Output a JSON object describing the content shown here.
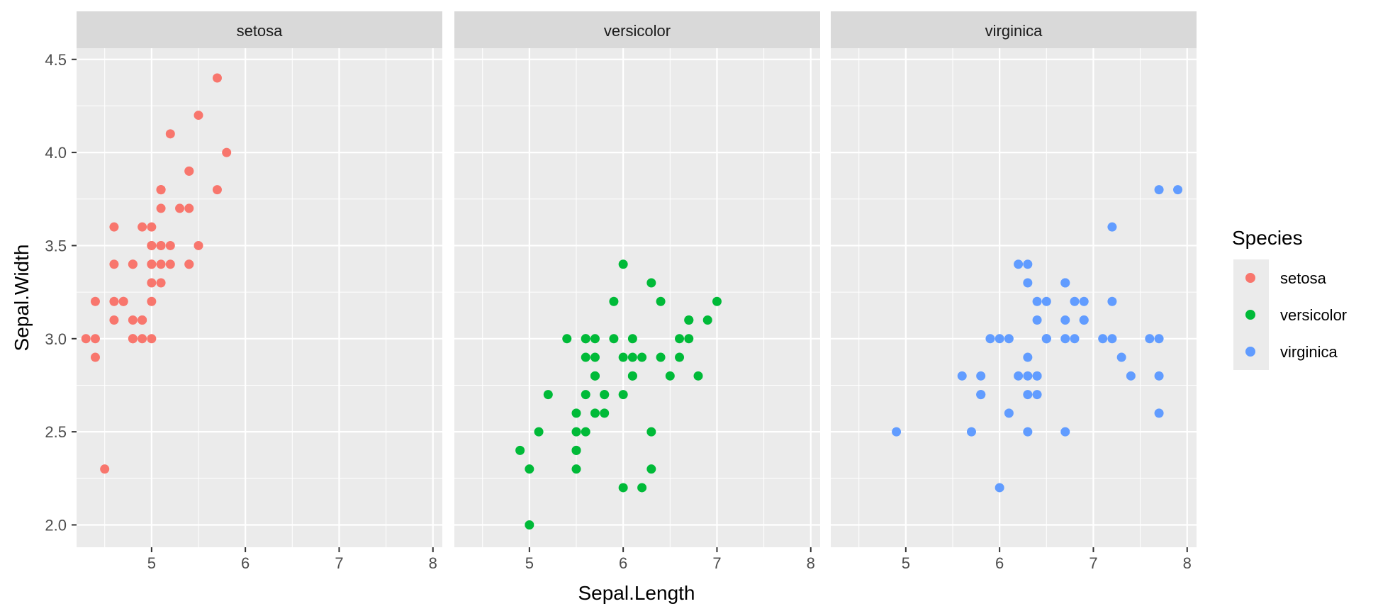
{
  "chart_data": {
    "type": "scatter",
    "xlabel": "Sepal.Length",
    "ylabel": "Sepal.Width",
    "xlim": [
      4.2,
      8.1
    ],
    "ylim": [
      1.88,
      4.56
    ],
    "x_ticks": [
      5,
      6,
      7,
      8
    ],
    "y_ticks": [
      2.0,
      2.5,
      3.0,
      3.5,
      4.0,
      4.5
    ],
    "y_tick_labels": [
      "2.0",
      "2.5",
      "3.0",
      "3.5",
      "4.0",
      "4.5"
    ],
    "grid": true,
    "legend": {
      "title": "Species",
      "position": "right",
      "entries": [
        "setosa",
        "versicolor",
        "virginica"
      ]
    },
    "colors": {
      "setosa": "#F8766D",
      "versicolor": "#00BA38",
      "virginica": "#619CFF",
      "panel_bg": "#EBEBEB",
      "strip_bg": "#D9D9D9",
      "grid": "#FFFFFF"
    },
    "facets": [
      {
        "name": "setosa",
        "points": [
          [
            5.1,
            3.5
          ],
          [
            4.9,
            3.0
          ],
          [
            4.7,
            3.2
          ],
          [
            4.6,
            3.1
          ],
          [
            5.0,
            3.6
          ],
          [
            5.4,
            3.9
          ],
          [
            4.6,
            3.4
          ],
          [
            5.0,
            3.4
          ],
          [
            4.4,
            2.9
          ],
          [
            4.9,
            3.1
          ],
          [
            5.4,
            3.7
          ],
          [
            4.8,
            3.4
          ],
          [
            4.8,
            3.0
          ],
          [
            4.3,
            3.0
          ],
          [
            5.8,
            4.0
          ],
          [
            5.7,
            4.4
          ],
          [
            5.4,
            3.9
          ],
          [
            5.1,
            3.5
          ],
          [
            5.7,
            3.8
          ],
          [
            5.1,
            3.8
          ],
          [
            5.4,
            3.4
          ],
          [
            5.1,
            3.7
          ],
          [
            4.6,
            3.6
          ],
          [
            5.1,
            3.3
          ],
          [
            4.8,
            3.4
          ],
          [
            5.0,
            3.0
          ],
          [
            5.0,
            3.4
          ],
          [
            5.2,
            3.5
          ],
          [
            5.2,
            3.4
          ],
          [
            4.7,
            3.2
          ],
          [
            4.8,
            3.1
          ],
          [
            5.4,
            3.4
          ],
          [
            5.2,
            4.1
          ],
          [
            5.5,
            4.2
          ],
          [
            4.9,
            3.1
          ],
          [
            5.0,
            3.2
          ],
          [
            5.5,
            3.5
          ],
          [
            4.9,
            3.6
          ],
          [
            4.4,
            3.0
          ],
          [
            5.1,
            3.4
          ],
          [
            5.0,
            3.5
          ],
          [
            4.5,
            2.3
          ],
          [
            4.4,
            3.2
          ],
          [
            5.0,
            3.5
          ],
          [
            5.1,
            3.8
          ],
          [
            4.8,
            3.0
          ],
          [
            5.1,
            3.8
          ],
          [
            4.6,
            3.2
          ],
          [
            5.3,
            3.7
          ],
          [
            5.0,
            3.3
          ]
        ]
      },
      {
        "name": "versicolor",
        "points": [
          [
            7.0,
            3.2
          ],
          [
            6.4,
            3.2
          ],
          [
            6.9,
            3.1
          ],
          [
            5.5,
            2.3
          ],
          [
            6.5,
            2.8
          ],
          [
            5.7,
            2.8
          ],
          [
            6.3,
            3.3
          ],
          [
            4.9,
            2.4
          ],
          [
            6.6,
            2.9
          ],
          [
            5.2,
            2.7
          ],
          [
            5.0,
            2.0
          ],
          [
            5.9,
            3.0
          ],
          [
            6.0,
            2.2
          ],
          [
            6.1,
            2.9
          ],
          [
            5.6,
            2.9
          ],
          [
            6.7,
            3.1
          ],
          [
            5.6,
            3.0
          ],
          [
            5.8,
            2.7
          ],
          [
            6.2,
            2.2
          ],
          [
            5.6,
            2.5
          ],
          [
            5.9,
            3.2
          ],
          [
            6.1,
            2.8
          ],
          [
            6.3,
            2.5
          ],
          [
            6.1,
            2.8
          ],
          [
            6.4,
            2.9
          ],
          [
            6.6,
            3.0
          ],
          [
            6.8,
            2.8
          ],
          [
            6.7,
            3.0
          ],
          [
            6.0,
            2.9
          ],
          [
            5.7,
            2.6
          ],
          [
            5.5,
            2.4
          ],
          [
            5.5,
            2.4
          ],
          [
            5.8,
            2.7
          ],
          [
            6.0,
            2.7
          ],
          [
            5.4,
            3.0
          ],
          [
            6.0,
            3.4
          ],
          [
            6.7,
            3.1
          ],
          [
            6.3,
            2.3
          ],
          [
            5.6,
            3.0
          ],
          [
            5.5,
            2.5
          ],
          [
            5.5,
            2.6
          ],
          [
            6.1,
            3.0
          ],
          [
            5.8,
            2.6
          ],
          [
            5.0,
            2.3
          ],
          [
            5.6,
            2.7
          ],
          [
            5.7,
            3.0
          ],
          [
            5.7,
            2.9
          ],
          [
            6.2,
            2.9
          ],
          [
            5.1,
            2.5
          ],
          [
            5.7,
            2.8
          ]
        ]
      },
      {
        "name": "virginica",
        "points": [
          [
            6.3,
            3.3
          ],
          [
            5.8,
            2.7
          ],
          [
            7.1,
            3.0
          ],
          [
            6.3,
            2.9
          ],
          [
            6.5,
            3.0
          ],
          [
            7.6,
            3.0
          ],
          [
            4.9,
            2.5
          ],
          [
            7.3,
            2.9
          ],
          [
            6.7,
            2.5
          ],
          [
            7.2,
            3.6
          ],
          [
            6.5,
            3.2
          ],
          [
            6.4,
            2.7
          ],
          [
            6.8,
            3.0
          ],
          [
            5.7,
            2.5
          ],
          [
            5.8,
            2.8
          ],
          [
            6.4,
            3.2
          ],
          [
            6.5,
            3.0
          ],
          [
            7.7,
            3.8
          ],
          [
            7.7,
            2.6
          ],
          [
            6.0,
            2.2
          ],
          [
            6.9,
            3.2
          ],
          [
            5.6,
            2.8
          ],
          [
            7.7,
            2.8
          ],
          [
            6.3,
            2.7
          ],
          [
            6.7,
            3.3
          ],
          [
            7.2,
            3.2
          ],
          [
            6.2,
            2.8
          ],
          [
            6.1,
            3.0
          ],
          [
            6.4,
            2.8
          ],
          [
            7.2,
            3.0
          ],
          [
            7.4,
            2.8
          ],
          [
            7.9,
            3.8
          ],
          [
            6.4,
            2.8
          ],
          [
            6.3,
            2.8
          ],
          [
            6.1,
            2.6
          ],
          [
            7.7,
            3.0
          ],
          [
            6.3,
            3.4
          ],
          [
            6.4,
            3.1
          ],
          [
            6.0,
            3.0
          ],
          [
            6.9,
            3.1
          ],
          [
            6.7,
            3.1
          ],
          [
            6.9,
            3.1
          ],
          [
            5.8,
            2.7
          ],
          [
            6.8,
            3.2
          ],
          [
            6.7,
            3.3
          ],
          [
            6.7,
            3.0
          ],
          [
            6.3,
            2.5
          ],
          [
            6.5,
            3.0
          ],
          [
            6.2,
            3.4
          ],
          [
            5.9,
            3.0
          ]
        ]
      }
    ]
  }
}
